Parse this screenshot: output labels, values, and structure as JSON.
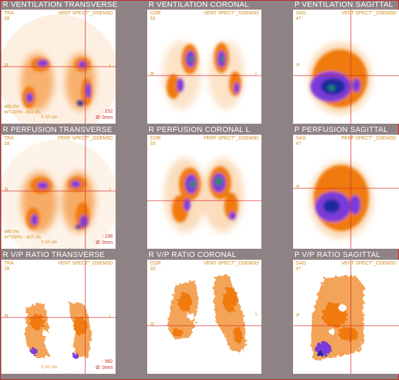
{
  "rows": [
    {
      "titles": [
        "R  VENTILATION  TRANSVERSE",
        "R  VENTILATION  CORONAL",
        "P  VENTILATION  SAGITTAL"
      ],
      "panels": [
        {
          "view": "TRA",
          "slice": "28",
          "series": "VENT SPECT\"_OSEM3D",
          "left": "R",
          "right": "L",
          "info_bl": "WB:0%\nWT100% - 611 cts",
          "info_br": ": 152\nØ: 0mm",
          "scale": "0       10 cm"
        },
        {
          "view": "COR",
          "slice": "33",
          "series": "VENT SPECT\"_OSEM3D",
          "left": "R",
          "right": "L"
        },
        {
          "view": "SAG",
          "slice": "47",
          "series": "VENT SPECT\"_OSEM3D",
          "left": "P",
          "right": ""
        }
      ]
    },
    {
      "titles": [
        "R  PERFUSION  TRANSVERSE",
        "R  PERFUSION  CORONAL  L",
        "P  PERFUSION  SAGITTAL"
      ],
      "panels": [
        {
          "view": "TRA",
          "slice": "28",
          "series": "PERF SPECT\"_OSEM3D",
          "left": "R",
          "right": "L",
          "info_bl": "WB:0%\nWT100% - 607 cts",
          "info_br": ": 196\nØ: 0mm",
          "scale": "0       10 cm"
        },
        {
          "view": "COR",
          "slice": "33",
          "series": "PERF SPECT\"_OSEM3D",
          "left": "",
          "right": ""
        },
        {
          "view": "SAG",
          "slice": "47",
          "series": "PERF SPECT\"_OSEM3D",
          "left": "P",
          "right": ""
        }
      ]
    },
    {
      "titles": [
        "R  V/P RATIO  TRANSVERSE",
        "R  V/P RATIO  CORONAL",
        "P  V/P RATIO  SAGITTAL"
      ],
      "panels": [
        {
          "view": "TRA",
          "slice": "28",
          "series": "VENT SPECT\"_OSEM3D",
          "left": "R",
          "right": "L",
          "info_bl": "",
          "info_br": ": 982\nØ: 0mm",
          "scale": "0       10 cm"
        },
        {
          "view": "COR",
          "slice": "33",
          "series": "VENT SPECT\"_OSEM3D",
          "left": "R",
          "right": "L"
        },
        {
          "view": "SAG",
          "slice": "47",
          "series": "VENT SPECT\"_OSEM3D",
          "left": "P",
          "right": ""
        }
      ]
    }
  ],
  "colors": {
    "crosshair": "#d42a2a",
    "label": "#d08a18",
    "hot": "#f07a10",
    "mid": "#7a3ad8",
    "core": "#1a2aa0",
    "center": "#1f8a5a"
  }
}
